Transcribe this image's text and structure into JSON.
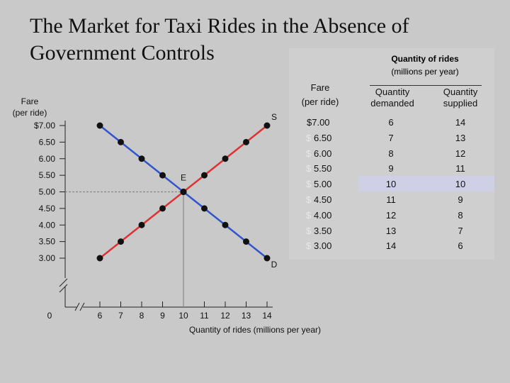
{
  "title": "The Market for Taxi Rides in the Absence of\nGovernment Controls",
  "table": {
    "header_line1": "Quantity of rides",
    "header_line2": "(millions per year)",
    "fare_head_1": "Fare",
    "fare_head_2": "(per ride)",
    "demanded_head": "Quantity\ndemanded",
    "supplied_head": "Quantity\nsupplied",
    "rows": [
      {
        "fare": "$7.00",
        "demanded": "6",
        "supplied": "14"
      },
      {
        "fare": "6.50",
        "demanded": "7",
        "supplied": "13"
      },
      {
        "fare": "6.00",
        "demanded": "8",
        "supplied": "12"
      },
      {
        "fare": "5.50",
        "demanded": "9",
        "supplied": "11"
      },
      {
        "fare": "5.00",
        "demanded": "10",
        "supplied": "10"
      },
      {
        "fare": "4.50",
        "demanded": "11",
        "supplied": "9"
      },
      {
        "fare": "4.00",
        "demanded": "12",
        "supplied": "8"
      },
      {
        "fare": "3.50",
        "demanded": "13",
        "supplied": "7"
      },
      {
        "fare": "3.00",
        "demanded": "14",
        "supplied": "6"
      }
    ],
    "highlight_row": 4
  },
  "chart_data": {
    "type": "line",
    "ylabel": "Fare\n(per ride)",
    "xlabel": "Quantity of rides (millions per year)",
    "y_ticks": [
      "$7.00",
      "6.50",
      "6.00",
      "5.50",
      "5.00",
      "4.50",
      "4.00",
      "3.50",
      "3.00"
    ],
    "y_tick_values": [
      7.0,
      6.5,
      6.0,
      5.5,
      5.0,
      4.5,
      4.0,
      3.5,
      3.0
    ],
    "x_ticks": [
      "6",
      "7",
      "8",
      "9",
      "10",
      "11",
      "12",
      "13",
      "14"
    ],
    "x_tick_values": [
      6,
      7,
      8,
      9,
      10,
      11,
      12,
      13,
      14
    ],
    "x_origin_label": "0",
    "xlim": [
      6,
      14
    ],
    "ylim": [
      3.0,
      7.0
    ],
    "axis_breaks": true,
    "series": [
      {
        "name": "D",
        "color": "#3355cc",
        "x": [
          6,
          7,
          8,
          9,
          10,
          11,
          12,
          13,
          14
        ],
        "y": [
          7.0,
          6.5,
          6.0,
          5.5,
          5.0,
          4.5,
          4.0,
          3.5,
          3.0
        ]
      },
      {
        "name": "S",
        "color": "#dd3333",
        "x": [
          6,
          7,
          8,
          9,
          10,
          11,
          12,
          13,
          14
        ],
        "y": [
          3.0,
          3.5,
          4.0,
          4.5,
          5.0,
          5.5,
          6.0,
          6.5,
          7.0
        ]
      }
    ],
    "equilibrium": {
      "label": "E",
      "x": 10,
      "y": 5.0
    },
    "guide_color": "#888888",
    "point_color": "#111111"
  }
}
